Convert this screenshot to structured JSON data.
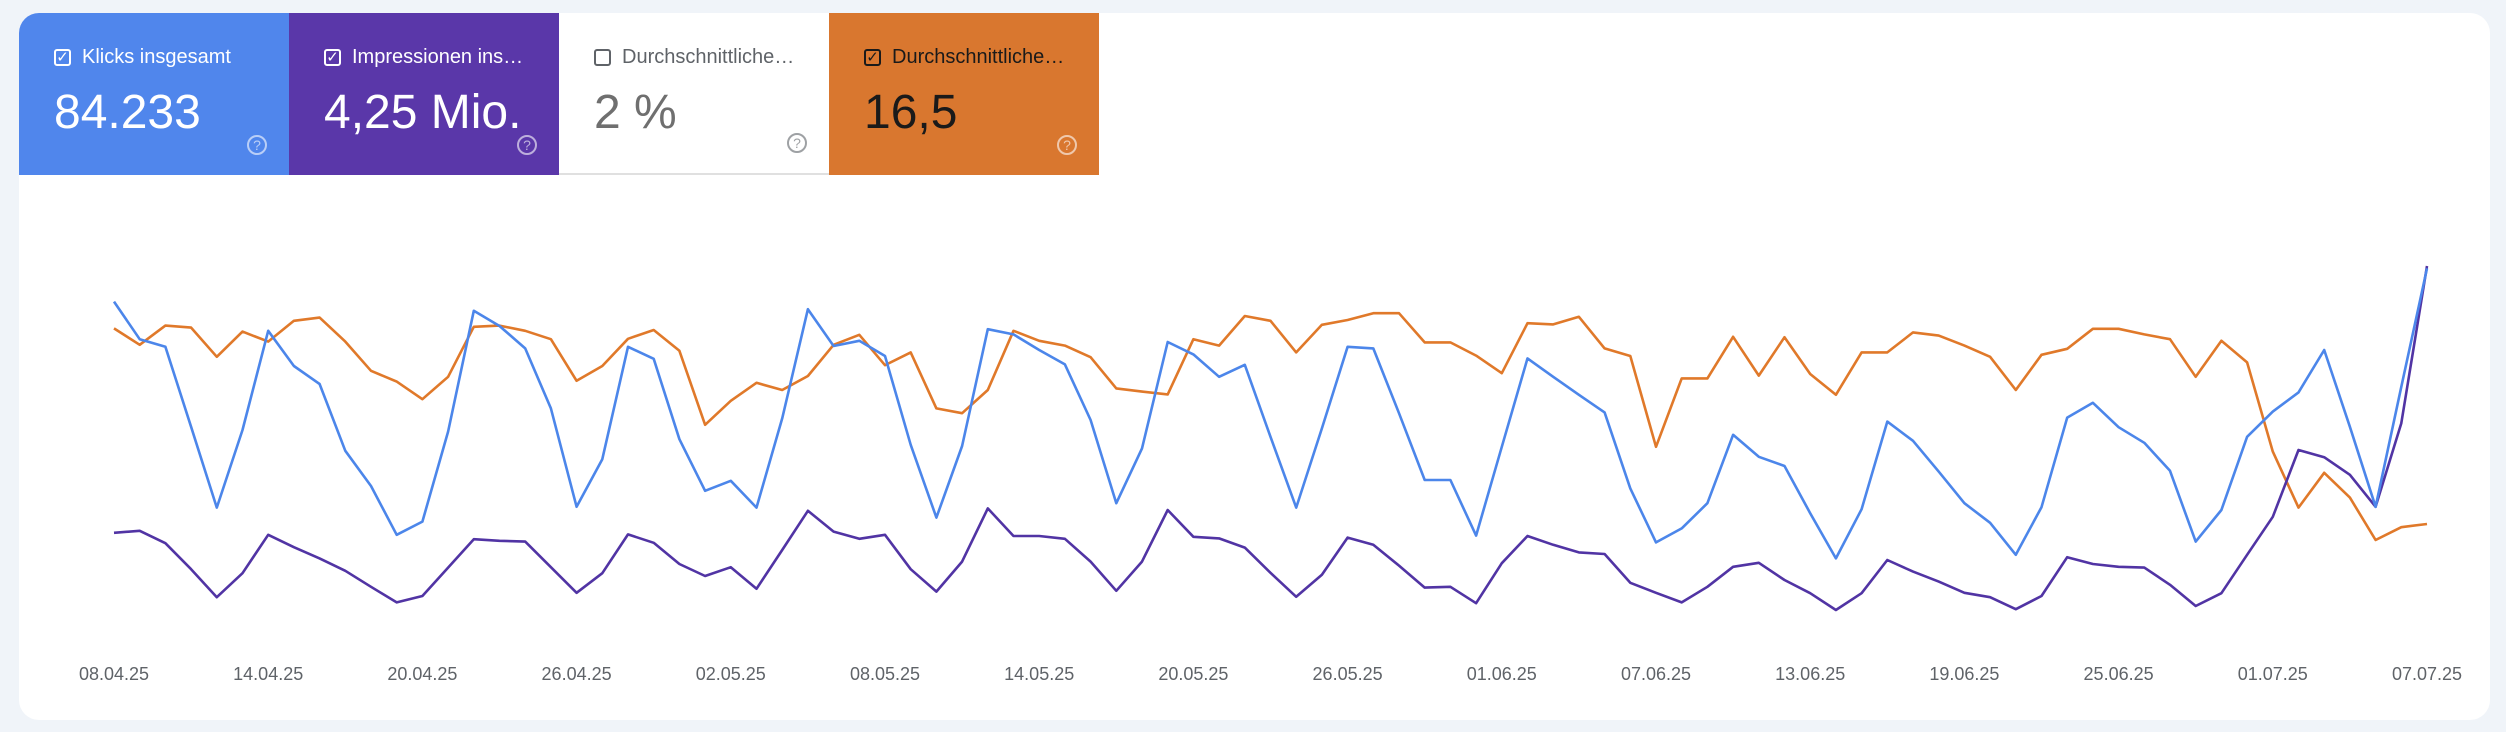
{
  "tiles": [
    {
      "label": "Klicks insgesamt",
      "value": "84.233",
      "checked": true,
      "color": "#5086ec"
    },
    {
      "label": "Impressionen ins…",
      "value": "4,25 Mio.",
      "checked": true,
      "color": "#5a37a9"
    },
    {
      "label": "Durchschnittliche…",
      "value": "2 %",
      "checked": false,
      "color": "#ffffff"
    },
    {
      "label": "Durchschnittliche…",
      "value": "16,5",
      "checked": true,
      "color": "#d9772f"
    }
  ],
  "help_icon": "question-circle-icon",
  "chart_data": {
    "type": "line",
    "note": "values are relative (0-100) as no y-axis is shown",
    "x_tick_labels": [
      "08.04.25",
      "14.04.25",
      "20.04.25",
      "26.04.25",
      "02.05.25",
      "08.05.25",
      "14.05.25",
      "20.05.25",
      "26.05.25",
      "01.06.25",
      "07.06.25",
      "13.06.25",
      "19.06.25",
      "25.06.25",
      "01.07.25",
      "07.07.25"
    ],
    "x_tick_every": 6,
    "points": 91,
    "ylim": [
      0,
      100
    ],
    "series": [
      {
        "name": "Durchschnittliche Position",
        "color": "#e0792a",
        "values": [
          77.9,
          73.8,
          78.6,
          78.1,
          70.8,
          77.1,
          74.6,
          79.8,
          80.6,
          74.6,
          67.3,
          64.6,
          60.2,
          65.8,
          78.3,
          78.6,
          77.3,
          75.2,
          64.8,
          68.5,
          75.3,
          77.5,
          72.3,
          53.8,
          59.8,
          64.3,
          62.5,
          66,
          73.8,
          76.3,
          68.7,
          71.9,
          57.9,
          56.7,
          62.5,
          77.3,
          74.8,
          73.6,
          70.7,
          62.9,
          62.1,
          61.4,
          75.2,
          73.6,
          81,
          79.8,
          71.9,
          78.8,
          80,
          81.7,
          81.7,
          74.4,
          74.4,
          71.1,
          66.7,
          79.2,
          78.9,
          80.8,
          72.9,
          71,
          48.3,
          65.4,
          65.4,
          75.8,
          66.1,
          75.7,
          66.5,
          61.3,
          71.9,
          71.9,
          76.9,
          76.1,
          73.6,
          70.8,
          62.5,
          71.3,
          72.8,
          77.8,
          77.8,
          76.4,
          75.2,
          65.8,
          74.8,
          69.4,
          47.1,
          33.1,
          41.8,
          35.6,
          25,
          28.2,
          29
        ]
      },
      {
        "name": "Impressionen insgesamt",
        "color": "#5134a4",
        "values": [
          26.8,
          27.3,
          24.2,
          17.7,
          10.7,
          16.7,
          26.3,
          23.2,
          20.4,
          17.3,
          13.3,
          9.4,
          11,
          18.1,
          25.2,
          24.8,
          24.6,
          18.2,
          11.8,
          16.7,
          26.4,
          24.3,
          19,
          16,
          18.2,
          12.8,
          22.5,
          32.3,
          27.1,
          25.3,
          26.3,
          17.7,
          12.1,
          19.6,
          32.9,
          26,
          26,
          25.3,
          19.6,
          12.3,
          19.6,
          32.5,
          25.8,
          25.4,
          23.1,
          16.8,
          10.8,
          16.3,
          25.6,
          23.8,
          18.6,
          13.1,
          13.3,
          9.2,
          19.2,
          26,
          23.8,
          21.9,
          21.5,
          14.3,
          11.8,
          9.4,
          13.3,
          18.3,
          19.3,
          15,
          11.7,
          7.5,
          11.7,
          20,
          17.1,
          14.6,
          11.8,
          10.7,
          7.7,
          11,
          20.7,
          19,
          18.3,
          18.1,
          13.8,
          8.5,
          11.7,
          21.3,
          30.8,
          47.5,
          45.7,
          41.3,
          33.3,
          54.2,
          93.5
        ]
      },
      {
        "name": "Klicks insgesamt",
        "color": "#4c86ea",
        "values": [
          84.6,
          75.2,
          73.3,
          53.3,
          33.1,
          52.5,
          77.3,
          68.5,
          64,
          47.3,
          38.5,
          26.3,
          29.6,
          52.1,
          82.3,
          78.5,
          72.9,
          57.9,
          33.3,
          45.2,
          73.3,
          70.3,
          50.2,
          37.3,
          39.8,
          33.1,
          55.4,
          82.7,
          73.5,
          74.8,
          71,
          48.8,
          30.6,
          48.5,
          77.7,
          76.4,
          72.5,
          68.9,
          55,
          34.2,
          47.9,
          74.5,
          71.4,
          65.8,
          68.8,
          50.8,
          33.1,
          52.9,
          73.3,
          72.9,
          56.7,
          40,
          40,
          26.1,
          48.3,
          70.4,
          65.8,
          61.3,
          56.9,
          37.9,
          24.4,
          27.9,
          34.2,
          51.3,
          45.8,
          43.5,
          31.7,
          20.4,
          32.7,
          54.6,
          49.8,
          42.1,
          34.2,
          29.3,
          21.3,
          33.2,
          55.6,
          59.3,
          53.2,
          49.3,
          42.3,
          24.6,
          32.5,
          50.8,
          57.1,
          61.9,
          72.5,
          53.3,
          33.3,
          63.3,
          92.9
        ]
      }
    ]
  }
}
